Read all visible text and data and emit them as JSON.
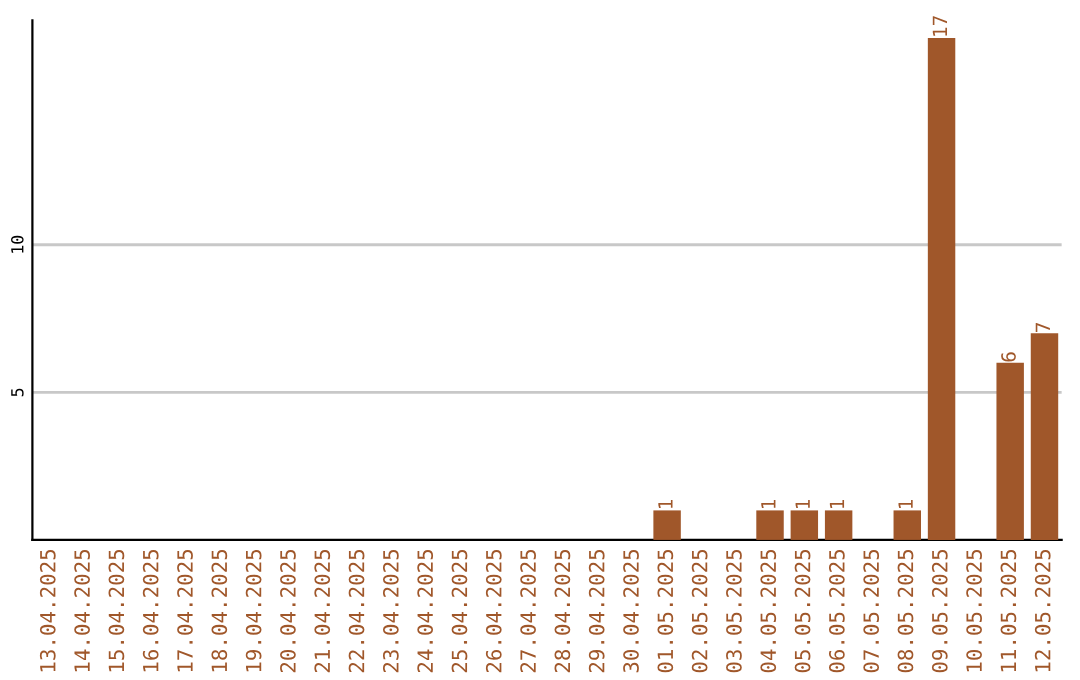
{
  "chart_data": {
    "type": "bar",
    "categories": [
      "13.04.2025",
      "14.04.2025",
      "15.04.2025",
      "16.04.2025",
      "17.04.2025",
      "18.04.2025",
      "19.04.2025",
      "20.04.2025",
      "21.04.2025",
      "22.04.2025",
      "23.04.2025",
      "24.04.2025",
      "25.04.2025",
      "26.04.2025",
      "27.04.2025",
      "28.04.2025",
      "29.04.2025",
      "30.04.2025",
      "01.05.2025",
      "02.05.2025",
      "03.05.2025",
      "04.05.2025",
      "05.05.2025",
      "06.05.2025",
      "07.05.2025",
      "08.05.2025",
      "09.05.2025",
      "10.05.2025",
      "11.05.2025",
      "12.05.2025"
    ],
    "values": [
      0,
      0,
      0,
      0,
      0,
      0,
      0,
      0,
      0,
      0,
      0,
      0,
      0,
      0,
      0,
      0,
      0,
      0,
      1,
      0,
      0,
      1,
      1,
      1,
      0,
      1,
      17,
      0,
      6,
      7
    ],
    "value_labels": [
      null,
      null,
      null,
      null,
      null,
      null,
      null,
      null,
      null,
      null,
      null,
      null,
      null,
      null,
      null,
      null,
      null,
      null,
      "1",
      null,
      null,
      "1",
      "1",
      "1",
      null,
      "1",
      "17",
      null,
      "6",
      "7"
    ],
    "color": "#a0572a",
    "ylim": [
      0,
      17.6
    ],
    "yticks": [
      5,
      10
    ],
    "grid": "y"
  }
}
